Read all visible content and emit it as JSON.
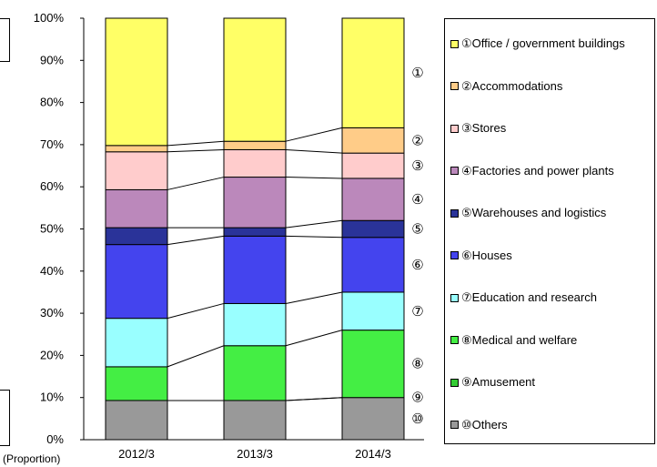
{
  "chart_data": {
    "type": "bar",
    "stacked": true,
    "categories": [
      "2012/3",
      "2013/3",
      "2014/3"
    ],
    "yticks": [
      "0%",
      "10%",
      "20%",
      "30%",
      "40%",
      "50%",
      "60%",
      "70%",
      "80%",
      "90%",
      "100%"
    ],
    "ylim": [
      0,
      100
    ],
    "ylabel": "(Proportion)",
    "legend_position": "right",
    "series": [
      {
        "name": "⑩Others",
        "num": "⑩",
        "color": "#999999",
        "values": [
          9.3,
          9.3,
          10.0
        ]
      },
      {
        "name": "⑨Amusement",
        "num": "⑨",
        "color": "#33cc33",
        "values": [
          0.0,
          0.0,
          0.0
        ]
      },
      {
        "name": "⑧Medical and welfare",
        "num": "⑧",
        "color": "#44ee44",
        "values": [
          8.0,
          13.0,
          16.0
        ]
      },
      {
        "name": "⑦Education and research",
        "num": "⑦",
        "color": "#99ffff",
        "values": [
          11.5,
          10.0,
          9.0
        ]
      },
      {
        "name": "⑥Houses",
        "num": "⑥",
        "color": "#4444ee",
        "values": [
          17.5,
          16.0,
          13.0
        ]
      },
      {
        "name": "⑤Warehouses and logistics",
        "num": "⑤",
        "color": "#2a3399",
        "values": [
          4.0,
          2.0,
          4.0
        ]
      },
      {
        "name": "④Factories and power plants",
        "num": "④",
        "color": "#bb88bb",
        "values": [
          9.0,
          12.0,
          10.0
        ]
      },
      {
        "name": "③Stores",
        "num": "③",
        "color": "#ffcccc",
        "values": [
          9.0,
          6.5,
          6.0
        ]
      },
      {
        "name": "②Accommodations",
        "num": "②",
        "color": "#ffcc88",
        "values": [
          1.5,
          2.0,
          6.0
        ]
      },
      {
        "name": "①Office / government buildings",
        "num": "①",
        "color": "#ffff66",
        "values": [
          30.2,
          29.2,
          26.0
        ]
      }
    ]
  }
}
